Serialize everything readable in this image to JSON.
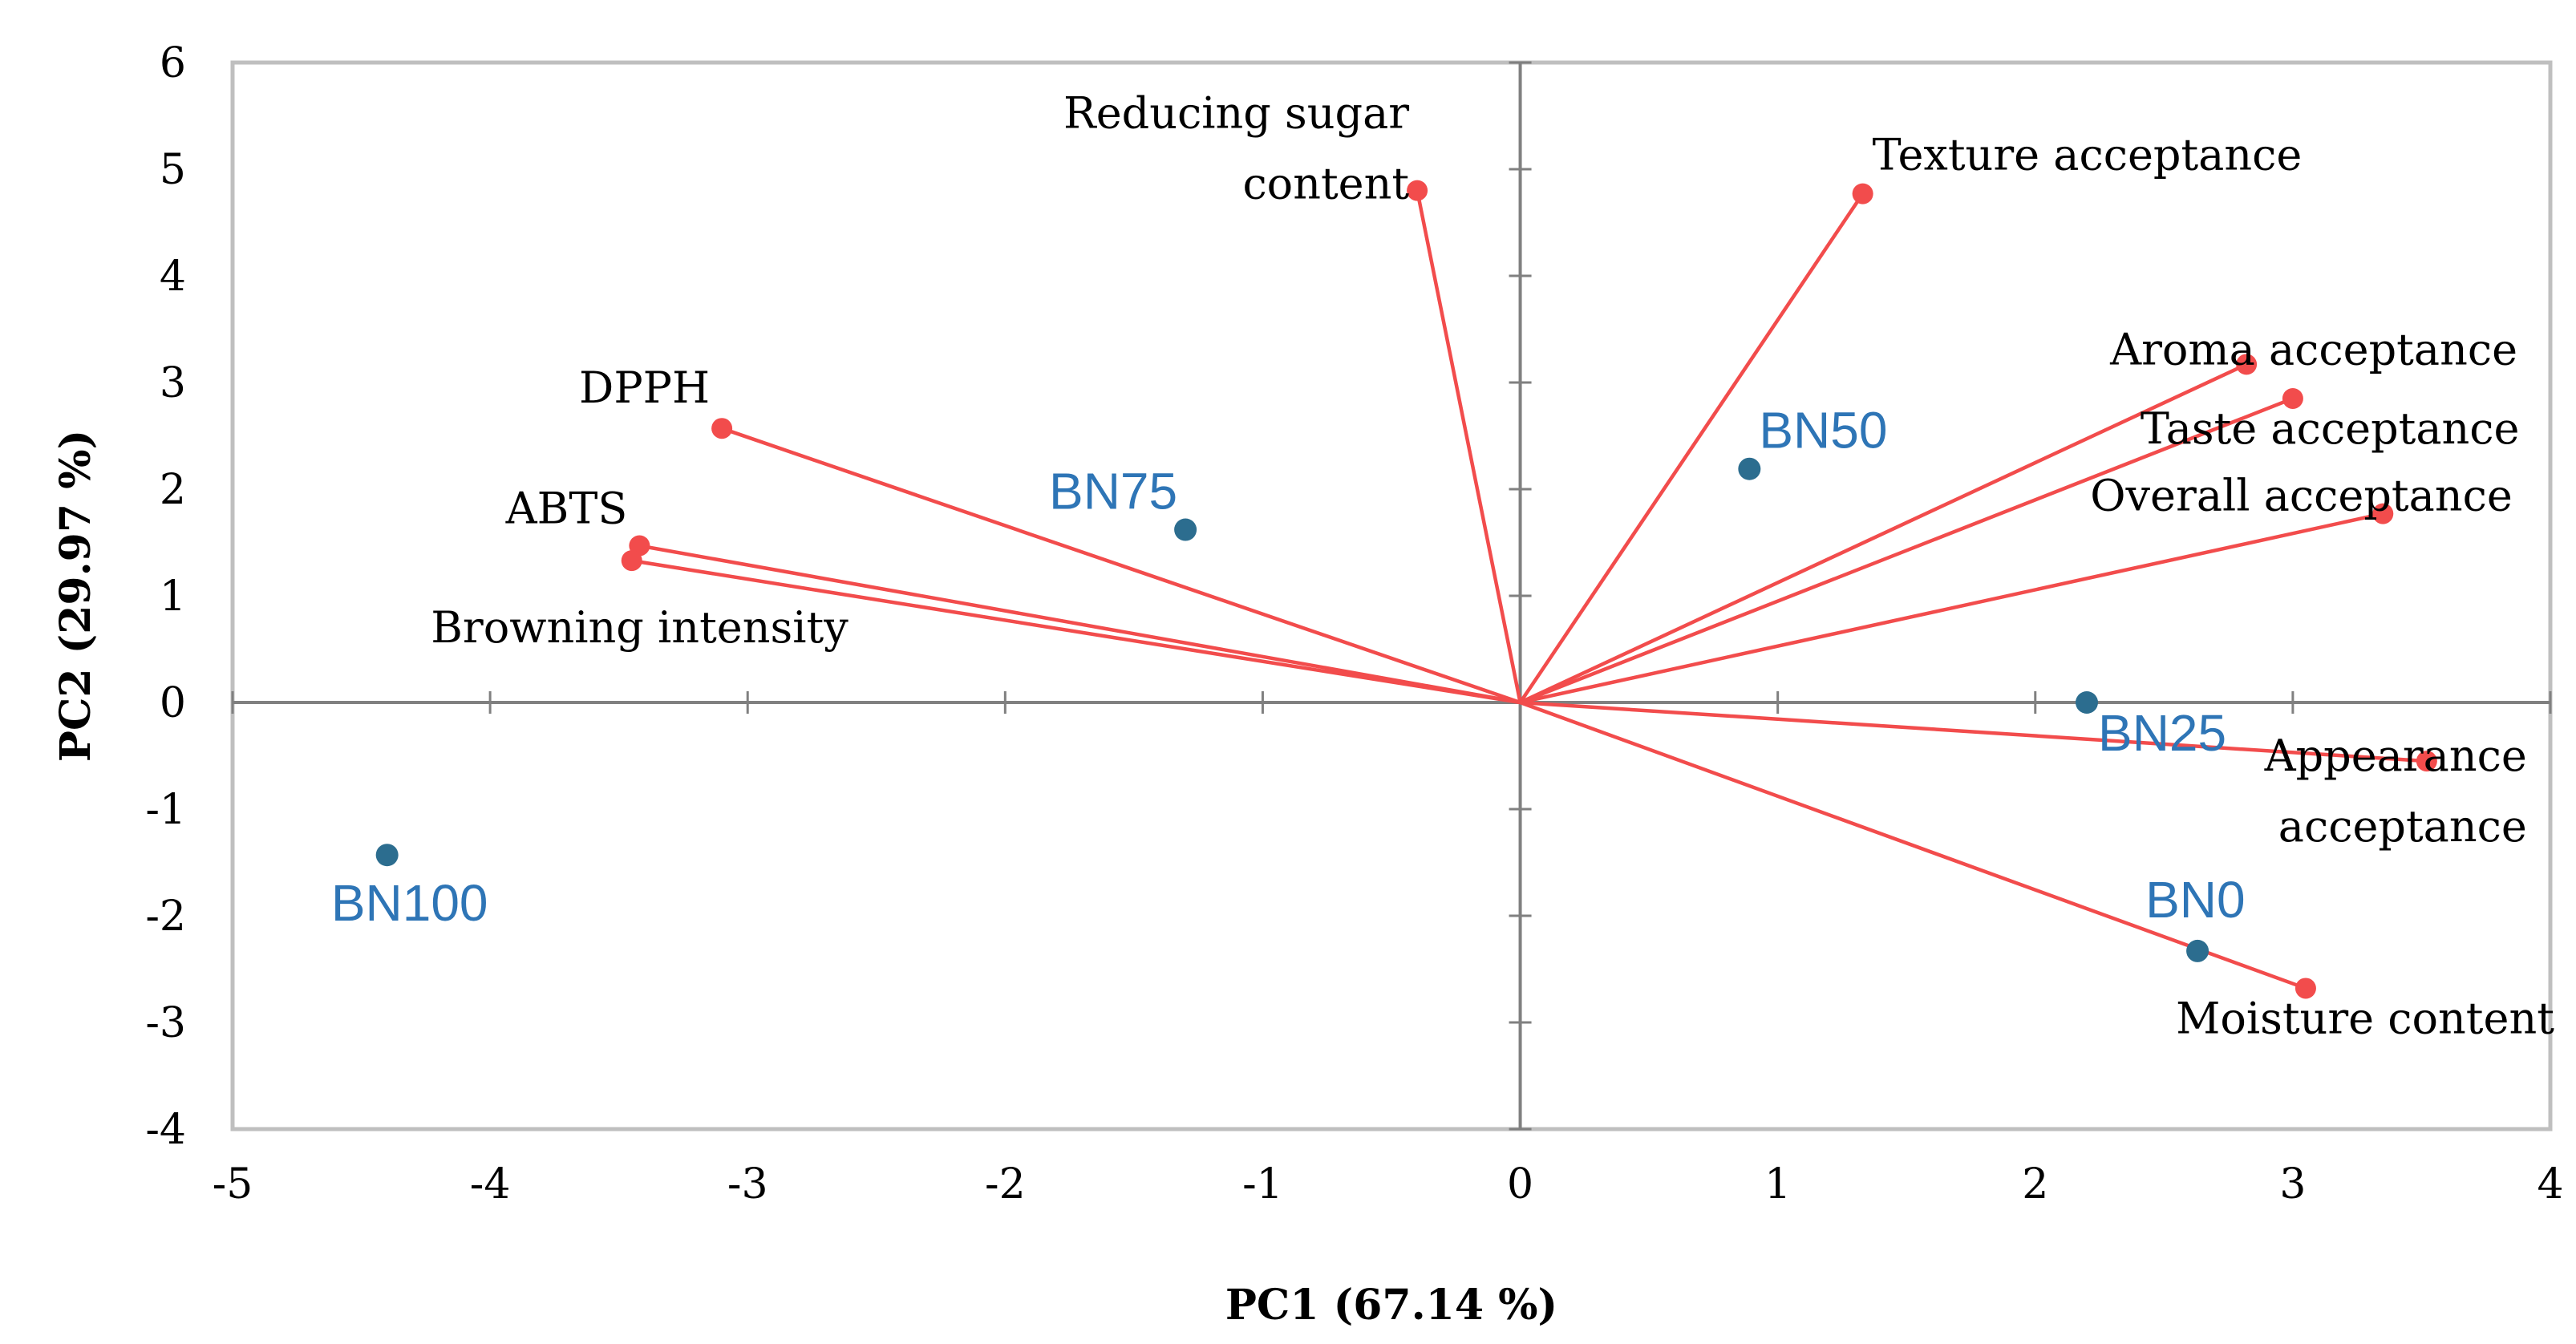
{
  "chart_data": {
    "type": "scatter",
    "title": "",
    "xlabel": "PC1 (67.14 %)",
    "ylabel": "PC2 (29.97 %)",
    "xlim": [
      -5,
      4
    ],
    "ylim": [
      -4,
      6
    ],
    "xticks": [
      "-5",
      "-4",
      "-3",
      "-2",
      "-1",
      "0",
      "1",
      "2",
      "3",
      "4"
    ],
    "yticks": [
      "-4",
      "-3",
      "-2",
      "-1",
      "0",
      "1",
      "2",
      "3",
      "4",
      "5",
      "6"
    ],
    "grid": false,
    "colors": {
      "loading": "#f24c4c",
      "sample": "#2c6d8f",
      "sample_label": "#2e75b6",
      "frame": "#bfbfbf",
      "axis": "#808080"
    },
    "loadings": [
      {
        "name": "Reducing sugar content",
        "lines": [
          "Reducing sugar",
          "content"
        ],
        "x": -0.4,
        "y": 4.8
      },
      {
        "name": "Texture acceptance",
        "lines": [
          "Texture acceptance"
        ],
        "x": 1.33,
        "y": 4.77
      },
      {
        "name": "Aroma acceptance",
        "lines": [
          "Aroma acceptance"
        ],
        "x": 2.82,
        "y": 3.17
      },
      {
        "name": "Taste acceptance",
        "lines": [
          "Taste acceptance"
        ],
        "x": 3.0,
        "y": 2.85
      },
      {
        "name": "Overall acceptance",
        "lines": [
          "Overall acceptance"
        ],
        "x": 3.35,
        "y": 1.77
      },
      {
        "name": "Appearance acceptance",
        "lines": [
          "Appearance",
          "acceptance"
        ],
        "x": 3.52,
        "y": -0.55
      },
      {
        "name": "Moisture content",
        "lines": [
          "Moisture content"
        ],
        "x": 3.05,
        "y": -2.68
      },
      {
        "name": "DPPH",
        "lines": [
          "DPPH"
        ],
        "x": -3.1,
        "y": 2.57
      },
      {
        "name": "ABTS",
        "lines": [
          "ABTS"
        ],
        "x": -3.42,
        "y": 1.47
      },
      {
        "name": "Browning intensity",
        "lines": [
          "Browning intensity"
        ],
        "x": -3.45,
        "y": 1.33
      }
    ],
    "samples": [
      {
        "name": "BN0",
        "x": 2.63,
        "y": -2.33
      },
      {
        "name": "BN25",
        "x": 2.2,
        "y": 0.0
      },
      {
        "name": "BN50",
        "x": 0.89,
        "y": 2.19
      },
      {
        "name": "BN75",
        "x": -1.3,
        "y": 1.62
      },
      {
        "name": "BN100",
        "x": -4.4,
        "y": -1.43
      }
    ]
  }
}
